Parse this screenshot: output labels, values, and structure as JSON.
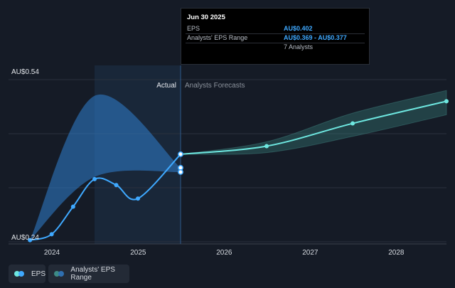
{
  "tooltip": {
    "date": "Jun 30 2025",
    "rows": [
      {
        "label": "EPS",
        "value": "AU$0.402"
      },
      {
        "label": "Analysts' EPS Range",
        "value": "AU$0.369 - AU$0.377"
      }
    ],
    "analysts": "7 Analysts"
  },
  "regions": {
    "actual": "Actual",
    "forecast": "Analysts Forecasts"
  },
  "legend": {
    "eps": {
      "label": "EPS",
      "color": "#3fa9ff"
    },
    "range": {
      "label": "Analysts' EPS Range",
      "color": "#3a7f8a"
    }
  },
  "colors": {
    "background": "#151b26",
    "actual_shade": "#1b2c42",
    "eps_actual": "#3fa9ff",
    "eps_forecast": "#6ee7e0",
    "range_past": "#2f7fd0",
    "range_future": "#3d8a85"
  },
  "chart_data": {
    "type": "line",
    "y_tick_labels": [
      {
        "value": 0.54,
        "label": "AU$0.54"
      },
      {
        "value": 0.24,
        "label": "AU$0.24"
      }
    ],
    "ylim": [
      0.24,
      0.54
    ],
    "xlim": [
      "2023-07-01",
      "2028-08-01"
    ],
    "x_tick_labels": [
      "2024",
      "2025",
      "2026",
      "2027",
      "2028"
    ],
    "x_ticks": [
      "2024-01-01",
      "2025-01-01",
      "2026-01-01",
      "2027-01-01",
      "2028-01-01"
    ],
    "grid": true,
    "legend_position": "bottom-left",
    "divider_date": "2025-06-30",
    "series": [
      {
        "name": "EPS",
        "kind": "actual",
        "points": [
          {
            "x": "2023-09-30",
            "y": 0.243
          },
          {
            "x": "2023-12-31",
            "y": 0.254
          },
          {
            "x": "2024-03-31",
            "y": 0.305
          },
          {
            "x": "2024-06-30",
            "y": 0.356
          },
          {
            "x": "2024-09-30",
            "y": 0.345
          },
          {
            "x": "2024-12-31",
            "y": 0.32
          },
          {
            "x": "2025-06-30",
            "y": 0.402
          }
        ]
      },
      {
        "name": "EPS",
        "kind": "forecast",
        "points": [
          {
            "x": "2025-06-30",
            "y": 0.402
          },
          {
            "x": "2026-06-30",
            "y": 0.417
          },
          {
            "x": "2027-06-30",
            "y": 0.459
          },
          {
            "x": "2028-08-01",
            "y": 0.5
          }
        ]
      },
      {
        "name": "Analysts' EPS Range",
        "kind": "range-past",
        "upper": [
          {
            "x": "2023-09-30",
            "y": 0.243
          },
          {
            "x": "2024-06-30",
            "y": 0.51
          },
          {
            "x": "2025-06-30",
            "y": 0.377
          }
        ],
        "lower": [
          {
            "x": "2023-09-30",
            "y": 0.243
          },
          {
            "x": "2024-06-30",
            "y": 0.36
          },
          {
            "x": "2025-06-30",
            "y": 0.369
          }
        ]
      },
      {
        "name": "Analysts' EPS Range",
        "kind": "range-future",
        "upper": [
          {
            "x": "2025-06-30",
            "y": 0.402
          },
          {
            "x": "2026-06-30",
            "y": 0.425
          },
          {
            "x": "2027-06-30",
            "y": 0.478
          },
          {
            "x": "2028-08-01",
            "y": 0.52
          }
        ],
        "lower": [
          {
            "x": "2025-06-30",
            "y": 0.402
          },
          {
            "x": "2026-06-30",
            "y": 0.405
          },
          {
            "x": "2027-06-30",
            "y": 0.435
          },
          {
            "x": "2028-08-01",
            "y": 0.475
          }
        ]
      },
      {
        "name": "Analysts' EPS Range",
        "kind": "range-markers",
        "points": [
          {
            "x": "2025-06-30",
            "y": 0.377
          },
          {
            "x": "2025-06-30",
            "y": 0.369
          }
        ]
      }
    ]
  }
}
